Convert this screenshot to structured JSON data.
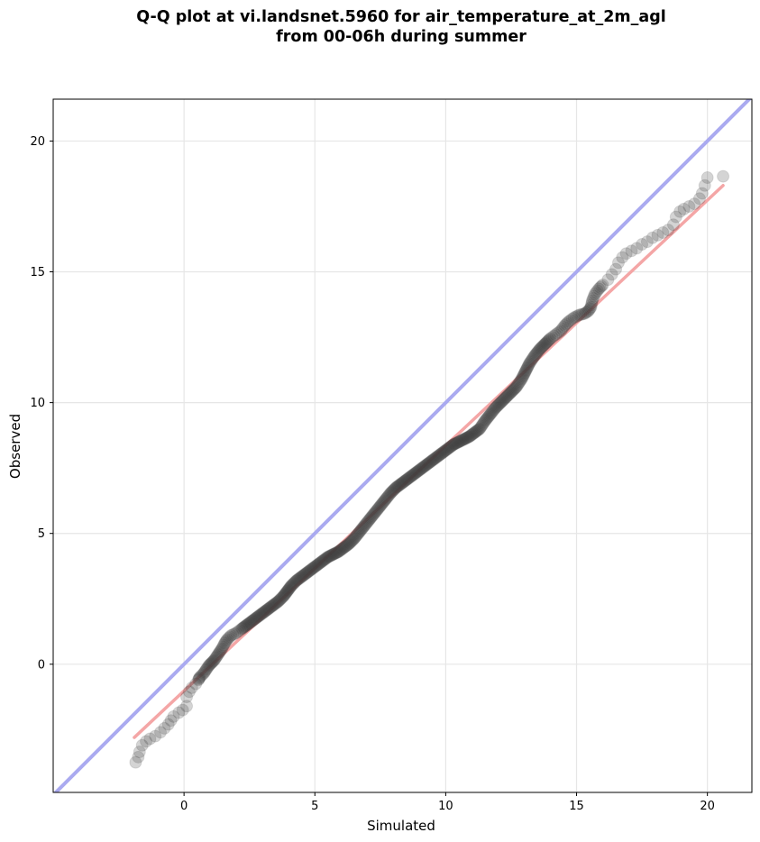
{
  "chart_data": {
    "type": "scatter",
    "title_line1": "Q-Q plot at vi.landsnet.5960 for air_temperature_at_2m_agl",
    "title_line2": "from 00-06h during summer",
    "xlabel": "Simulated",
    "ylabel": "Observed",
    "xlim": [
      -5.0,
      21.7
    ],
    "ylim": [
      -4.9,
      21.6
    ],
    "xticks": [
      0,
      5,
      10,
      15,
      20
    ],
    "yticks": [
      0,
      5,
      10,
      15,
      20
    ],
    "grid": true,
    "reference_line": {
      "name": "1:1",
      "color": "#aaaaf0",
      "from": [
        -5.0,
        -5.0
      ],
      "to": [
        21.7,
        21.7
      ]
    },
    "fit_line": {
      "color": "#f4a6a6",
      "from": [
        -1.9,
        -2.8
      ],
      "to": [
        20.6,
        18.3
      ]
    },
    "point_color": "#3a3a3a",
    "points": [
      [
        -1.85,
        -3.75
      ],
      [
        -1.75,
        -3.55
      ],
      [
        -1.7,
        -3.35
      ],
      [
        -1.6,
        -3.1
      ],
      [
        -1.45,
        -2.95
      ],
      [
        -1.3,
        -2.85
      ],
      [
        -1.1,
        -2.75
      ],
      [
        -0.9,
        -2.6
      ],
      [
        -0.75,
        -2.45
      ],
      [
        -0.6,
        -2.3
      ],
      [
        -0.5,
        -2.15
      ],
      [
        -0.4,
        -2.0
      ],
      [
        -0.2,
        -1.85
      ],
      [
        -0.05,
        -1.75
      ],
      [
        0.1,
        -1.6
      ],
      [
        0.1,
        -1.25
      ],
      [
        0.2,
        -1.05
      ],
      [
        0.3,
        -0.9
      ],
      [
        0.45,
        -0.75
      ],
      [
        0.55,
        -0.6
      ],
      [
        0.6,
        -0.5
      ],
      [
        0.75,
        -0.35
      ],
      [
        0.85,
        -0.2
      ],
      [
        0.95,
        -0.05
      ],
      [
        1.05,
        0.05
      ],
      [
        1.15,
        0.15
      ],
      [
        1.25,
        0.3
      ],
      [
        1.35,
        0.45
      ],
      [
        1.45,
        0.6
      ],
      [
        1.55,
        0.8
      ],
      [
        1.65,
        0.95
      ],
      [
        1.8,
        1.1
      ],
      [
        2.0,
        1.2
      ],
      [
        2.2,
        1.35
      ],
      [
        2.4,
        1.5
      ],
      [
        2.6,
        1.65
      ],
      [
        2.8,
        1.8
      ],
      [
        3.0,
        1.95
      ],
      [
        3.2,
        2.1
      ],
      [
        3.4,
        2.25
      ],
      [
        3.6,
        2.4
      ],
      [
        3.8,
        2.6
      ],
      [
        3.95,
        2.8
      ],
      [
        4.1,
        3.0
      ],
      [
        4.3,
        3.2
      ],
      [
        4.5,
        3.35
      ],
      [
        4.7,
        3.5
      ],
      [
        4.9,
        3.65
      ],
      [
        5.1,
        3.8
      ],
      [
        5.3,
        3.95
      ],
      [
        5.5,
        4.1
      ],
      [
        5.7,
        4.2
      ],
      [
        5.9,
        4.3
      ],
      [
        6.1,
        4.45
      ],
      [
        6.3,
        4.6
      ],
      [
        6.5,
        4.8
      ],
      [
        6.7,
        5.05
      ],
      [
        6.9,
        5.3
      ],
      [
        7.1,
        5.55
      ],
      [
        7.3,
        5.8
      ],
      [
        7.5,
        6.05
      ],
      [
        7.7,
        6.3
      ],
      [
        7.9,
        6.55
      ],
      [
        8.1,
        6.75
      ],
      [
        8.3,
        6.9
      ],
      [
        8.5,
        7.05
      ],
      [
        8.7,
        7.2
      ],
      [
        8.9,
        7.35
      ],
      [
        9.1,
        7.5
      ],
      [
        9.3,
        7.65
      ],
      [
        9.5,
        7.8
      ],
      [
        9.7,
        7.95
      ],
      [
        9.9,
        8.1
      ],
      [
        10.1,
        8.25
      ],
      [
        10.3,
        8.4
      ],
      [
        10.5,
        8.5
      ],
      [
        10.7,
        8.6
      ],
      [
        10.9,
        8.7
      ],
      [
        11.1,
        8.85
      ],
      [
        11.3,
        9.0
      ],
      [
        11.5,
        9.3
      ],
      [
        11.7,
        9.55
      ],
      [
        11.9,
        9.8
      ],
      [
        12.1,
        10.0
      ],
      [
        12.3,
        10.2
      ],
      [
        12.5,
        10.4
      ],
      [
        12.7,
        10.6
      ],
      [
        12.9,
        10.9
      ],
      [
        13.05,
        11.2
      ],
      [
        13.2,
        11.5
      ],
      [
        13.4,
        11.8
      ],
      [
        13.6,
        12.05
      ],
      [
        13.8,
        12.25
      ],
      [
        14.0,
        12.45
      ],
      [
        14.2,
        12.6
      ],
      [
        14.4,
        12.75
      ],
      [
        14.55,
        12.95
      ],
      [
        14.7,
        13.1
      ],
      [
        14.9,
        13.25
      ],
      [
        15.1,
        13.35
      ],
      [
        15.3,
        13.4
      ],
      [
        15.45,
        13.5
      ],
      [
        15.55,
        13.65
      ],
      [
        15.6,
        13.9
      ],
      [
        15.7,
        14.15
      ],
      [
        15.85,
        14.35
      ],
      [
        16.0,
        14.5
      ],
      [
        16.2,
        14.7
      ],
      [
        16.35,
        14.9
      ],
      [
        16.5,
        15.1
      ],
      [
        16.6,
        15.35
      ],
      [
        16.75,
        15.55
      ],
      [
        16.9,
        15.7
      ],
      [
        17.1,
        15.8
      ],
      [
        17.3,
        15.9
      ],
      [
        17.5,
        16.05
      ],
      [
        17.7,
        16.15
      ],
      [
        17.9,
        16.3
      ],
      [
        18.1,
        16.4
      ],
      [
        18.3,
        16.5
      ],
      [
        18.5,
        16.6
      ],
      [
        18.7,
        16.8
      ],
      [
        18.8,
        17.1
      ],
      [
        18.95,
        17.3
      ],
      [
        19.1,
        17.4
      ],
      [
        19.3,
        17.5
      ],
      [
        19.5,
        17.6
      ],
      [
        19.7,
        17.8
      ],
      [
        19.8,
        18.0
      ],
      [
        19.9,
        18.3
      ],
      [
        20.0,
        18.6
      ],
      [
        20.6,
        18.65
      ]
    ]
  }
}
